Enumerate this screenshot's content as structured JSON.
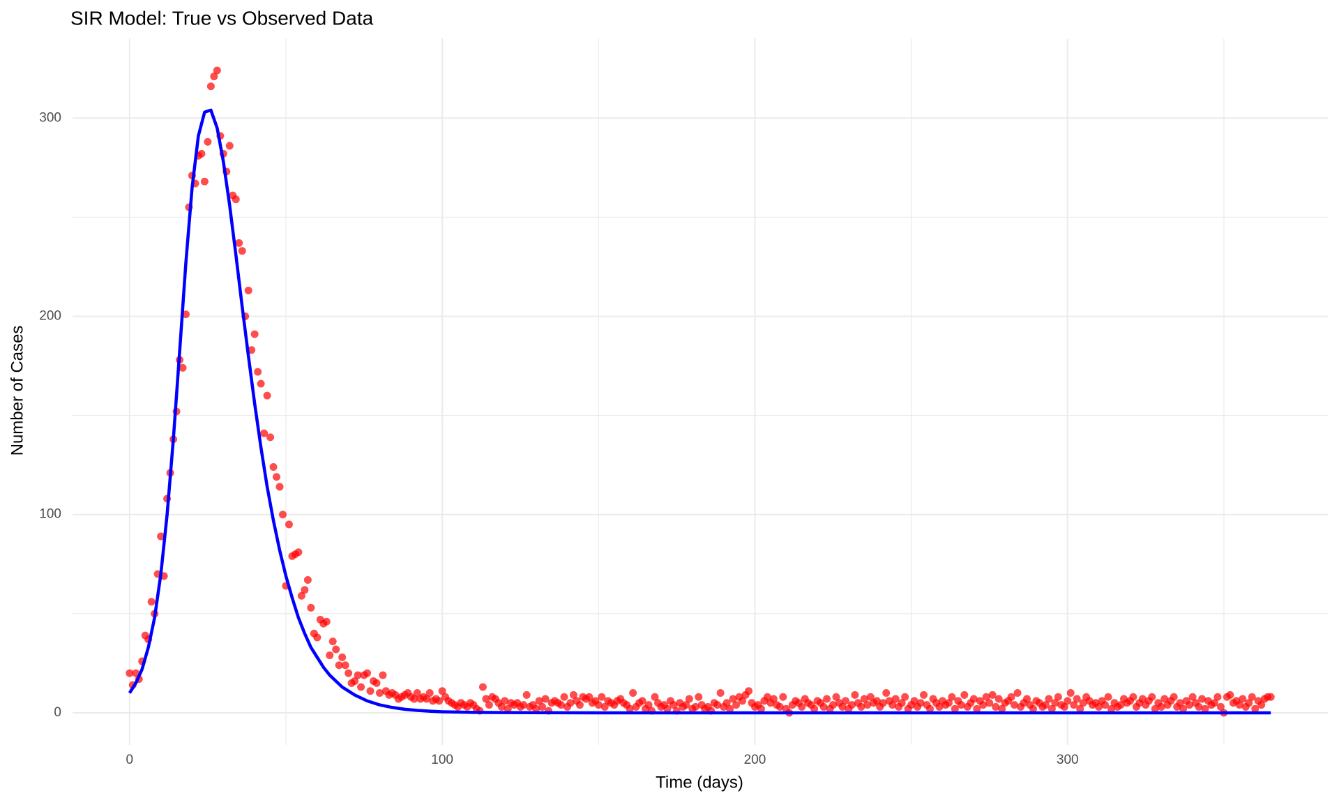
{
  "chart_data": {
    "type": "line",
    "title": "SIR Model: True vs Observed Data",
    "x_label": "Time (days)",
    "y_label": "Number of Cases",
    "xlim": [
      -18.25,
      383.25
    ],
    "ylim": [
      -16.2,
      340.2
    ],
    "xticks": [
      0,
      100,
      200,
      300
    ],
    "yticks": [
      0,
      100,
      200,
      300
    ],
    "xminor": [
      50,
      150,
      250,
      350
    ],
    "yminor": [
      50,
      150,
      250
    ],
    "grid": true,
    "series": [
      {
        "type": "scatter",
        "color": "#ff0000",
        "x": [
          0,
          1,
          2,
          3,
          4,
          5,
          6,
          7,
          8,
          9,
          10,
          11,
          12,
          13,
          14,
          15,
          16,
          17,
          18,
          19,
          20,
          21,
          22,
          23,
          24,
          25,
          26,
          27,
          28,
          29,
          30,
          31,
          32,
          33,
          34,
          35,
          36,
          37,
          38,
          39,
          40,
          41,
          42,
          43,
          44,
          45,
          46,
          47,
          48,
          49,
          50,
          51,
          52,
          53,
          54,
          55,
          56,
          57,
          58,
          59,
          60,
          61,
          62,
          63,
          64,
          65,
          66,
          67,
          68,
          69,
          70,
          71,
          72,
          73,
          74,
          75,
          76,
          77,
          78,
          79,
          80,
          81,
          82,
          83,
          84,
          85,
          86,
          87,
          88,
          89,
          90,
          91,
          92,
          93,
          94,
          95,
          96,
          97,
          98,
          99,
          100,
          101,
          102,
          103,
          104,
          105,
          106,
          107,
          108,
          109,
          110,
          111,
          112,
          113,
          114,
          115,
          116,
          117,
          118,
          119,
          120,
          121,
          122,
          123,
          124,
          125,
          126,
          127,
          128,
          129,
          130,
          131,
          132,
          133,
          134,
          135,
          136,
          137,
          138,
          139,
          140,
          141,
          142,
          143,
          144,
          145,
          146,
          147,
          148,
          149,
          150,
          151,
          152,
          153,
          154,
          155,
          156,
          157,
          158,
          159,
          160,
          161,
          162,
          163,
          164,
          165,
          166,
          167,
          168,
          169,
          170,
          171,
          172,
          173,
          174,
          175,
          176,
          177,
          178,
          179,
          180,
          181,
          182,
          183,
          184,
          185,
          186,
          187,
          188,
          189,
          190,
          191,
          192,
          193,
          194,
          195,
          196,
          197,
          198,
          199,
          200,
          201,
          202,
          203,
          204,
          205,
          206,
          207,
          208,
          209,
          210,
          211,
          212,
          213,
          214,
          215,
          216,
          217,
          218,
          219,
          220,
          221,
          222,
          223,
          224,
          225,
          226,
          227,
          228,
          229,
          230,
          231,
          232,
          233,
          234,
          235,
          236,
          237,
          238,
          239,
          240,
          241,
          242,
          243,
          244,
          245,
          246,
          247,
          248,
          249,
          250,
          251,
          252,
          253,
          254,
          255,
          256,
          257,
          258,
          259,
          260,
          261,
          262,
          263,
          264,
          265,
          266,
          267,
          268,
          269,
          270,
          271,
          272,
          273,
          274,
          275,
          276,
          277,
          278,
          279,
          280,
          281,
          282,
          283,
          284,
          285,
          286,
          287,
          288,
          289,
          290,
          291,
          292,
          293,
          294,
          295,
          296,
          297,
          298,
          299,
          300,
          301,
          302,
          303,
          304,
          305,
          306,
          307,
          308,
          309,
          310,
          311,
          312,
          313,
          314,
          315,
          316,
          317,
          318,
          319,
          320,
          321,
          322,
          323,
          324,
          325,
          326,
          327,
          328,
          329,
          330,
          331,
          332,
          333,
          334,
          335,
          336,
          337,
          338,
          339,
          340,
          341,
          342,
          343,
          344,
          345,
          346,
          347,
          348,
          349,
          350,
          351,
          352,
          353,
          354,
          355,
          356,
          357,
          358,
          359,
          360,
          361,
          362,
          363,
          364,
          365
        ],
        "values": [
          20,
          14,
          20,
          17,
          26,
          39,
          37,
          56,
          50,
          70,
          89,
          69,
          108,
          121,
          138,
          152,
          178,
          174,
          201,
          255,
          271,
          267,
          281,
          282,
          268,
          288,
          316,
          321,
          324,
          291,
          282,
          273,
          286,
          261,
          259,
          237,
          233,
          200,
          213,
          183,
          191,
          172,
          166,
          141,
          160,
          139,
          124,
          119,
          114,
          100,
          64,
          95,
          79,
          80,
          81,
          59,
          62,
          67,
          53,
          40,
          38,
          47,
          45,
          46,
          29,
          36,
          32,
          24,
          28,
          24,
          20,
          15,
          16,
          19,
          13,
          19,
          20,
          11,
          16,
          15,
          10,
          19,
          11,
          9,
          10,
          9,
          7,
          8,
          9,
          10,
          8,
          7,
          10,
          7,
          8,
          7,
          10,
          6,
          7,
          6,
          11,
          8,
          6,
          5,
          4,
          3,
          5,
          4,
          3,
          5,
          4,
          2,
          1,
          13,
          7,
          4,
          8,
          7,
          5,
          3,
          6,
          2,
          5,
          4,
          5,
          3,
          4,
          9,
          3,
          4,
          2,
          6,
          3,
          7,
          1,
          5,
          6,
          5,
          4,
          8,
          3,
          5,
          9,
          6,
          4,
          8,
          7,
          8,
          5,
          6,
          4,
          8,
          3,
          6,
          5,
          4,
          6,
          7,
          5,
          4,
          2,
          10,
          3,
          5,
          6,
          2,
          4,
          1,
          8,
          5,
          3,
          4,
          2,
          6,
          4,
          1,
          5,
          3,
          4,
          7,
          2,
          3,
          8,
          4,
          2,
          3,
          1,
          5,
          4,
          10,
          3,
          5,
          2,
          7,
          4,
          8,
          6,
          9,
          11,
          5,
          3,
          4,
          2,
          6,
          8,
          5,
          7,
          4,
          3,
          8,
          2,
          0,
          4,
          6,
          5,
          3,
          7,
          5,
          4,
          2,
          6,
          5,
          3,
          7,
          2,
          4,
          8,
          5,
          3,
          6,
          2,
          4,
          9,
          5,
          3,
          7,
          4,
          8,
          5,
          6,
          3,
          5,
          10,
          6,
          4,
          7,
          3,
          5,
          8,
          2,
          4,
          6,
          3,
          5,
          9,
          4,
          2,
          7,
          5,
          3,
          6,
          4,
          5,
          8,
          2,
          6,
          4,
          9,
          3,
          5,
          7,
          2,
          6,
          4,
          8,
          5,
          9,
          3,
          7,
          2,
          5,
          6,
          8,
          4,
          10,
          3,
          5,
          7,
          4,
          2,
          6,
          5,
          3,
          4,
          7,
          2,
          5,
          8,
          4,
          3,
          6,
          10,
          4,
          7,
          2,
          5,
          8,
          6,
          4,
          5,
          3,
          6,
          4,
          8,
          2,
          5,
          3,
          4,
          7,
          5,
          6,
          8,
          3,
          5,
          7,
          4,
          6,
          8,
          2,
          5,
          3,
          7,
          4,
          6,
          8,
          3,
          5,
          2,
          6,
          4,
          8,
          5,
          3,
          7,
          2,
          6,
          4,
          5,
          8,
          3,
          0,
          8,
          9,
          5,
          6,
          4,
          7,
          3,
          5,
          8,
          2,
          6,
          4,
          7,
          8,
          8
        ]
      },
      {
        "type": "line",
        "color": "#0000ff",
        "x": [
          0,
          2,
          4,
          6,
          8,
          10,
          12,
          14,
          16,
          18,
          20,
          22,
          24,
          26,
          28,
          30,
          32,
          34,
          36,
          38,
          40,
          42,
          44,
          46,
          48,
          50,
          52,
          54,
          56,
          58,
          60,
          62,
          64,
          66,
          68,
          70,
          72,
          74,
          76,
          78,
          80,
          84,
          88,
          92,
          96,
          100,
          110,
          120,
          150,
          200,
          250,
          300,
          365
        ],
        "values": [
          10,
          15,
          22,
          33,
          48,
          70,
          100,
          138,
          182,
          227,
          265,
          291,
          303,
          304,
          295,
          278,
          256,
          231,
          205,
          180,
          156,
          134,
          114,
          97,
          82,
          69,
          58,
          48,
          40,
          33,
          28,
          23,
          19,
          16,
          13,
          11,
          9,
          7.5,
          6,
          5,
          4,
          2.7,
          1.8,
          1.2,
          0.8,
          0.5,
          0.2,
          0.1,
          0,
          0,
          0,
          0,
          0
        ]
      }
    ]
  }
}
